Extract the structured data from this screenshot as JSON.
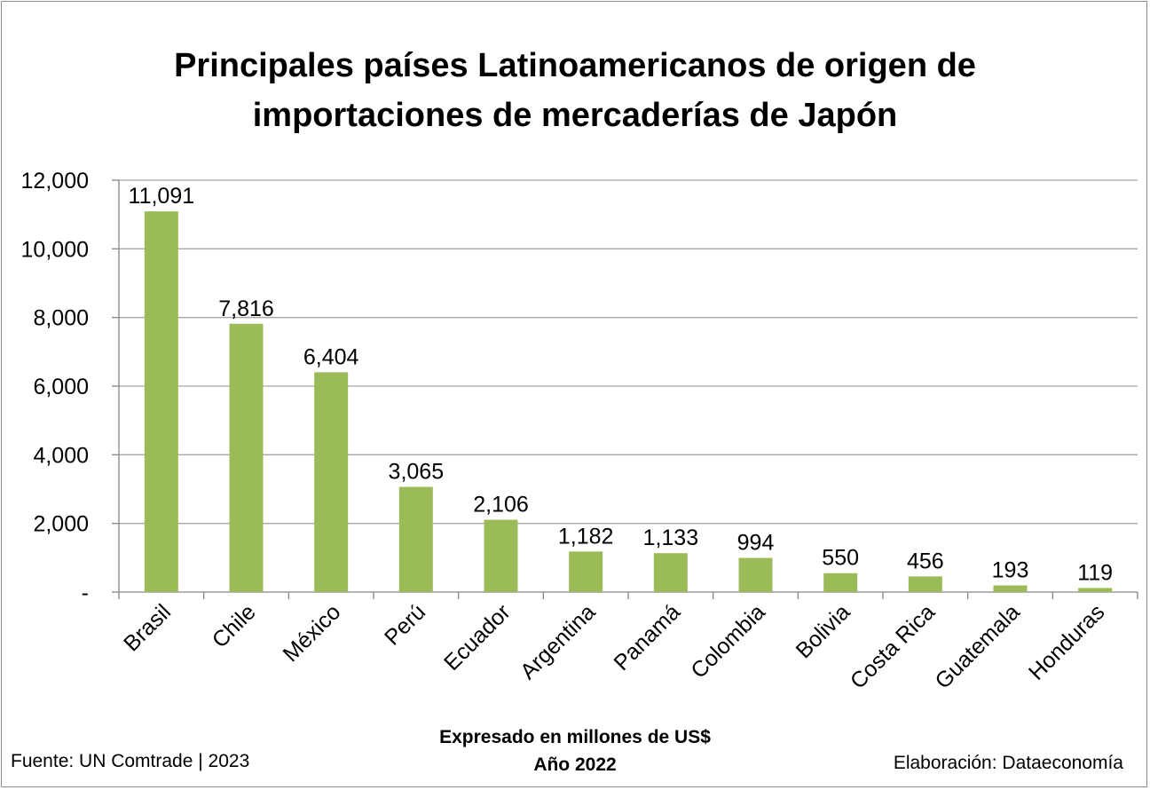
{
  "chart_data": {
    "type": "bar",
    "title_lines": [
      "Principales países Latinoamericanos de origen de",
      "importaciones de mercaderías de Japón"
    ],
    "categories": [
      "Brasil",
      "Chile",
      "México",
      "Perú",
      "Ecuador",
      "Argentina",
      "Panamá",
      "Colombia",
      "Bolivia",
      "Costa Rica",
      "Guatemala",
      "Honduras"
    ],
    "values": [
      11091,
      7816,
      6404,
      3065,
      2106,
      1182,
      1133,
      994,
      550,
      456,
      193,
      119
    ],
    "data_labels": [
      "11,091",
      "7,816",
      "6,404",
      "3,065",
      "2,106",
      "1,182",
      "1,133",
      "994",
      "550",
      "456",
      "193",
      "119"
    ],
    "yticks": [
      0,
      2000,
      4000,
      6000,
      8000,
      10000,
      12000
    ],
    "ytick_labels": [
      "-",
      "2,000",
      "4,000",
      "6,000",
      "8,000",
      "10,000",
      "12,000"
    ],
    "ylim": [
      0,
      12000
    ],
    "grid": true,
    "bar_color": "#9bbb59",
    "gridline_color": "#a6a6a6",
    "legend": "none",
    "xlabel_line1": "Expresado en millones de US$",
    "xlabel_line2": "Año 2022"
  },
  "footer": {
    "source": "Fuente: UN Comtrade | 2023",
    "credit": "Elaboración: Dataeconomía"
  }
}
